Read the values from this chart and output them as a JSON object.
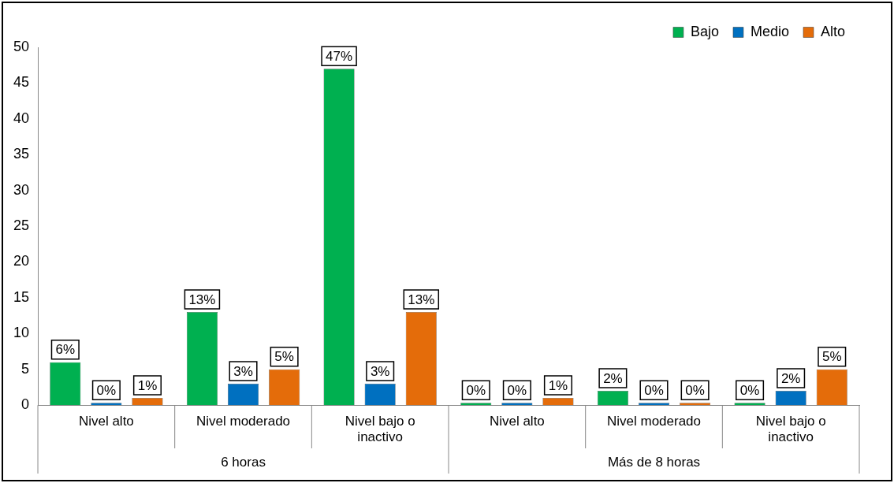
{
  "chart_data": {
    "type": "bar",
    "categories": [
      "Nivel alto",
      "Nivel moderado",
      "Nivel bajo o inactivo",
      "Nivel alto",
      "Nivel moderado",
      "Nivel bajo o inactivo"
    ],
    "series": [
      {
        "name": "Bajo",
        "color": "#00b050",
        "values": [
          6,
          13,
          47,
          0,
          2,
          0
        ],
        "value_labels": [
          "6%",
          "13%",
          "47%",
          "0%",
          "2%",
          "0%"
        ]
      },
      {
        "name": "Medio",
        "color": "#0070c0",
        "values": [
          0,
          3,
          3,
          0,
          0,
          2
        ],
        "value_labels": [
          "0%",
          "3%",
          "3%",
          "0%",
          "0%",
          "2%"
        ]
      },
      {
        "name": "Alto",
        "color": "#e46c0a",
        "values": [
          1,
          5,
          13,
          1,
          0,
          5
        ],
        "value_labels": [
          "1%",
          "5%",
          "13%",
          "1%",
          "0%",
          "5%"
        ]
      }
    ],
    "annotations": [
      "6 horas",
      "Más de 8 horas"
    ],
    "ylim": [
      0,
      50
    ],
    "yticks": [
      0,
      5,
      10,
      15,
      20,
      25,
      30,
      35,
      40,
      45,
      50
    ],
    "grid": false,
    "legend": "top right"
  }
}
